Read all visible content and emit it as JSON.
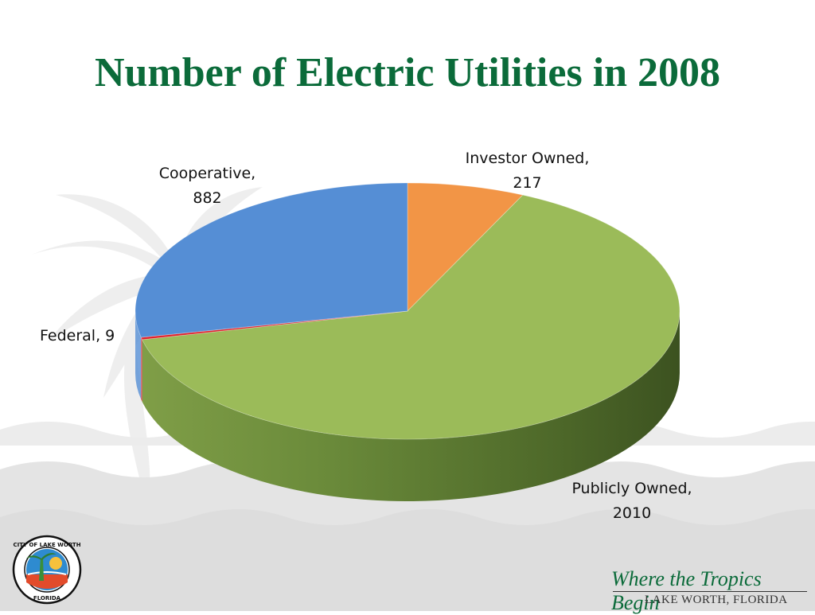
{
  "slide": {
    "title": "Number of Electric Utilities in 2008",
    "tagline": "Where the Tropics Begin",
    "location": "LAKE WORTH, FLORIDA",
    "logo": {
      "name": "city-seal",
      "text_top": "CITY OF LAKE WORTH",
      "text_bottom": "FLORIDA"
    }
  },
  "chart_data": {
    "type": "pie",
    "title": "Number of Electric Utilities in 2008",
    "style": "3d",
    "categories": [
      "Investor Owned",
      "Publicly Owned",
      "Federal",
      "Cooperative"
    ],
    "values": [
      217,
      2010,
      9,
      882
    ],
    "colors": [
      "#f29546",
      "#9bbb59",
      "#e0202a",
      "#558ed5"
    ],
    "labels": [
      {
        "line1": "Investor Owned,",
        "line2": "217"
      },
      {
        "line1": "Publicly Owned,",
        "line2": "2010"
      },
      {
        "line1": "Federal, 9",
        "line2": ""
      },
      {
        "line1": "Cooperative,",
        "line2": "882"
      }
    ],
    "legend": "none"
  }
}
